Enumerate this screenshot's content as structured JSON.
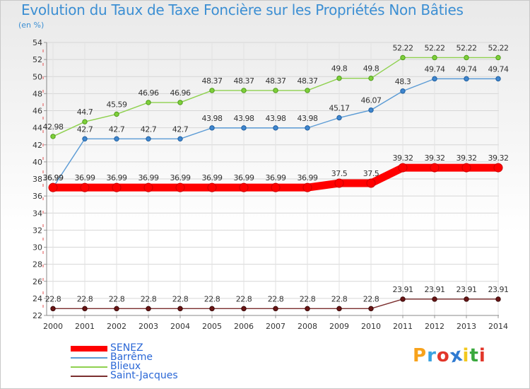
{
  "title": "Evolution du Taux de Taxe Foncière sur les Propriétés Non Bâties",
  "subtitle": "(en %)",
  "logo": {
    "text": "Proxiti",
    "letters": [
      "P",
      "r",
      "o",
      "x",
      "i",
      "t",
      "i"
    ],
    "colors": [
      "#f7a21b",
      "#3aa2e0",
      "#e2362a",
      "#2f7ad1",
      "#f2c81e",
      "#39a83d",
      "#e2362a"
    ]
  },
  "colors": {
    "SENEZ": "#ff0000",
    "Barrême": "#5b9bd5",
    "Blieux": "#8fd14f",
    "Saint-Jacques": "#7b2e2e"
  },
  "chart_data": {
    "type": "line",
    "title": "Evolution du Taux de Taxe Foncière sur les Propriétés Non Bâties",
    "ylabel": "(en %)",
    "xlabel": "",
    "x": [
      "2000",
      "2001",
      "2002",
      "2003",
      "2004",
      "2005",
      "2006",
      "2007",
      "2008",
      "2009",
      "2010",
      "2011",
      "2012",
      "2013",
      "2014"
    ],
    "ylim": [
      22,
      54
    ],
    "yticks": [
      22,
      24,
      26,
      28,
      30,
      32,
      34,
      36,
      38,
      40,
      42,
      44,
      46,
      48,
      50,
      52,
      54
    ],
    "grid": true,
    "legend": "bottom-left",
    "series": [
      {
        "name": "SENEZ",
        "values": [
          36.99,
          36.99,
          36.99,
          36.99,
          36.99,
          36.99,
          36.99,
          36.99,
          36.99,
          37.5,
          37.5,
          39.32,
          39.32,
          39.32,
          39.32
        ],
        "labels": [
          "36.99",
          "36.99",
          "36.99",
          "36.99",
          "36.99",
          "36.99",
          "36.99",
          "36.99",
          "36.99",
          "37.5",
          "37.5",
          "39.32",
          "39.32",
          "39.32",
          "39.32"
        ]
      },
      {
        "name": "Barrême",
        "values": [
          36.99,
          42.7,
          42.7,
          42.7,
          42.7,
          43.98,
          43.98,
          43.98,
          43.98,
          45.17,
          46.07,
          48.3,
          49.74,
          49.74,
          49.74
        ],
        "labels": [
          "36.99",
          "42.7",
          "42.7",
          "42.7",
          "42.7",
          "43.98",
          "43.98",
          "43.98",
          "43.98",
          "45.17",
          "46.07",
          "48.3",
          "49.74",
          "49.74",
          "49.74"
        ]
      },
      {
        "name": "Blieux",
        "values": [
          42.98,
          44.7,
          45.59,
          46.96,
          46.96,
          48.37,
          48.37,
          48.37,
          48.37,
          49.8,
          49.8,
          52.22,
          52.22,
          52.22,
          52.22
        ],
        "labels": [
          "42.98",
          "44.7",
          "45.59",
          "46.96",
          "46.96",
          "48.37",
          "48.37",
          "48.37",
          "48.37",
          "49.8",
          "49.8",
          "52.22",
          "52.22",
          "52.22",
          "52.22"
        ]
      },
      {
        "name": "Saint-Jacques",
        "values": [
          22.8,
          22.8,
          22.8,
          22.8,
          22.8,
          22.8,
          22.8,
          22.8,
          22.8,
          22.8,
          22.8,
          23.91,
          23.91,
          23.91,
          23.91
        ],
        "labels": [
          "22.8",
          "22.8",
          "22.8",
          "22.8",
          "22.8",
          "22.8",
          "22.8",
          "22.8",
          "22.8",
          "22.8",
          "22.8",
          "23.91",
          "23.91",
          "23.91",
          "23.91"
        ]
      }
    ]
  }
}
